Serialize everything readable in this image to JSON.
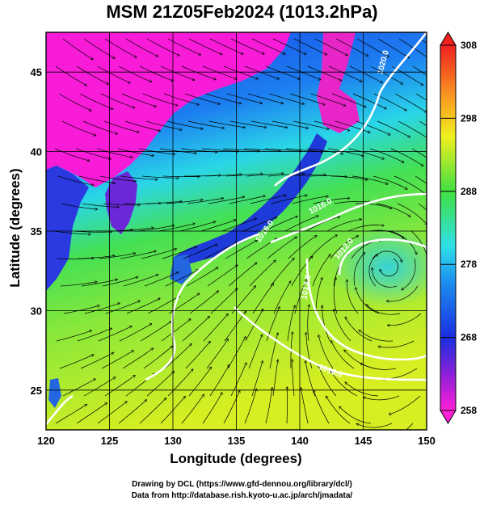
{
  "title": "MSM 21Z05Feb2024 (1013.2hPa)",
  "xlabel": "Longitude (degrees)",
  "ylabel": "Latitude  (degrees)",
  "x_ticks": [
    "120",
    "125",
    "130",
    "135",
    "140",
    "145",
    "150"
  ],
  "y_ticks": [
    "25",
    "30",
    "35",
    "40",
    "45"
  ],
  "x_range": [
    120,
    150
  ],
  "y_range": [
    22.5,
    47.5
  ],
  "colorbar": {
    "ticks": [
      "258",
      "268",
      "278",
      "288",
      "298",
      "308"
    ],
    "range": [
      258,
      308
    ]
  },
  "contour_labels": [
    "1020.0",
    "1016.0",
    "1016.0",
    "1012.0",
    "1012.0",
    "1016.0"
  ],
  "credits": {
    "line1": "Drawing by DCL (https://www.gfd-dennou.org/library/dcl/)",
    "line2": "Data from http://database.rish.kyoto-u.ac.jp/arch/jmadata/"
  },
  "colors": {
    "cold": "#ff1fd8",
    "cool": "#1a2ee0",
    "mid": "#2fe0e8",
    "warm": "#40e040",
    "hot": "#f0f020",
    "contour": "#ffffff",
    "streamline": "#000000"
  }
}
